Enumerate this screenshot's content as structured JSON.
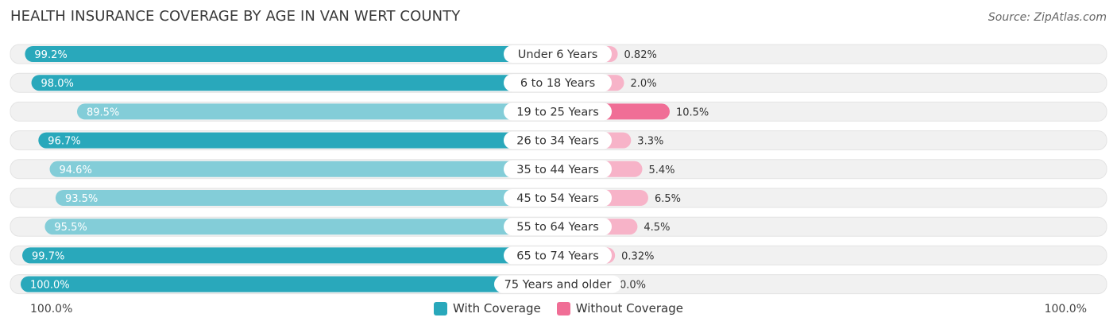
{
  "header": {
    "title": "HEALTH INSURANCE COVERAGE BY AGE IN VAN WERT COUNTY",
    "source": "Source: ZipAtlas.com"
  },
  "colors": {
    "with_coverage": "#29a8bb",
    "with_coverage_light": "#83cdd8",
    "without_coverage": "#f06e96",
    "without_coverage_light": "#f7b3c8",
    "row_bg": "#f1f1f1"
  },
  "axis": {
    "left_label": "100.0%",
    "right_label": "100.0%"
  },
  "legend": {
    "with_label": "With Coverage",
    "without_label": "Without Coverage"
  },
  "chart_data": {
    "type": "bar",
    "orientation": "horizontal-diverging",
    "title": "HEALTH INSURANCE COVERAGE BY AGE IN VAN WERT COUNTY",
    "categories": [
      "Under 6 Years",
      "6 to 18 Years",
      "19 to 25 Years",
      "26 to 34 Years",
      "35 to 44 Years",
      "45 to 54 Years",
      "55 to 64 Years",
      "65 to 74 Years",
      "75 Years and older"
    ],
    "series": [
      {
        "name": "With Coverage",
        "values": [
          99.2,
          98.0,
          89.5,
          96.7,
          94.6,
          93.5,
          95.5,
          99.7,
          100.0
        ],
        "labels": [
          "99.2%",
          "98.0%",
          "89.5%",
          "96.7%",
          "94.6%",
          "93.5%",
          "95.5%",
          "99.7%",
          "100.0%"
        ]
      },
      {
        "name": "Without Coverage",
        "values": [
          0.82,
          2.0,
          10.5,
          3.3,
          5.4,
          6.5,
          4.5,
          0.32,
          0.0
        ],
        "labels": [
          "0.82%",
          "2.0%",
          "10.5%",
          "3.3%",
          "5.4%",
          "6.5%",
          "4.5%",
          "0.32%",
          "0.0%"
        ]
      }
    ],
    "xlim": [
      -100,
      100
    ],
    "legend_position": "bottom-center"
  }
}
